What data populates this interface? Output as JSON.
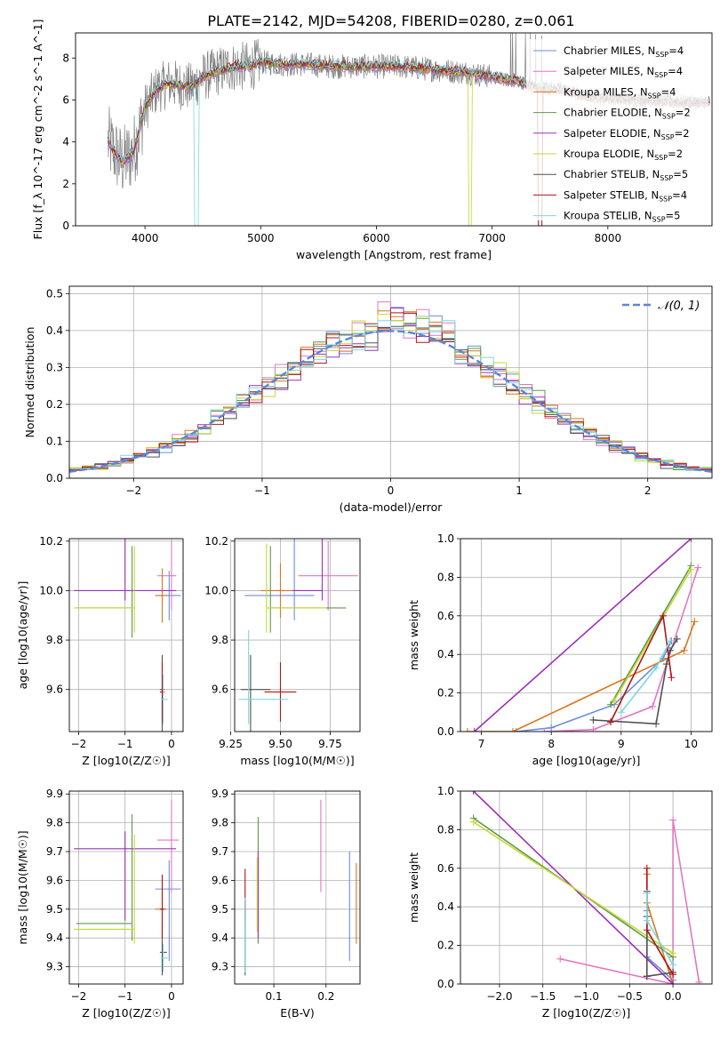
{
  "title": "PLATE=2142, MJD=54208, FIBERID=0280, z=0.061",
  "colors": [
    "#6a8fdb",
    "#e377c2",
    "#d9771f",
    "#5e9a4a",
    "#9b30b8",
    "#c8d832",
    "#505050",
    "#b01515",
    "#7fd6e0"
  ],
  "chart_data": [
    {
      "id": "spectrum",
      "type": "line",
      "xlabel": "wavelength [Angstrom, rest frame]",
      "ylabel": "Flux [f_λ 10^-17 erg cm^-2 s^-1 A^-1]",
      "xlim": [
        3400,
        8900
      ],
      "ylim": [
        0,
        9.2
      ],
      "xticks": [
        4000,
        5000,
        6000,
        7000,
        8000
      ],
      "yticks": [
        0,
        2,
        4,
        6,
        8
      ],
      "grid": false,
      "legend": "right",
      "data_color": "#808080",
      "data_x": [
        3680,
        3800,
        3900,
        4000,
        4100,
        4200,
        4300,
        4400,
        4500,
        4600,
        4700,
        4800,
        4900,
        5000,
        5200,
        5400,
        5600,
        5800,
        6000,
        6200,
        6400,
        6600,
        6800,
        7000,
        7200,
        7400,
        7600,
        7800,
        8000,
        8200,
        8400,
        8600,
        8800
      ],
      "data_y": [
        4.0,
        3.0,
        3.5,
        5.6,
        6.5,
        6.8,
        6.7,
        6.6,
        7.1,
        7.3,
        7.5,
        7.6,
        7.6,
        7.8,
        7.7,
        7.7,
        7.6,
        7.6,
        7.6,
        7.6,
        7.5,
        7.4,
        7.3,
        7.1,
        6.9,
        6.6,
        6.5,
        6.2,
        6.1,
        6.0,
        6.0,
        5.9,
        5.9
      ],
      "series": [
        {
          "name": "Chabrier MILES, N_SSP=4",
          "ssp": "N_SSP=4"
        },
        {
          "name": "Salpeter MILES, N_SSP=4",
          "ssp": "N_SSP=4"
        },
        {
          "name": "Kroupa MILES, N_SSP=4",
          "ssp": "N_SSP=4"
        },
        {
          "name": "Chabrier ELODIE, N_SSP=2",
          "ssp": "N_SSP=2"
        },
        {
          "name": "Salpeter ELODIE, N_SSP=2",
          "ssp": "N_SSP=2"
        },
        {
          "name": "Kroupa ELODIE, N_SSP=2",
          "ssp": "N_SSP=2"
        },
        {
          "name": "Chabrier STELIB, N_SSP=5",
          "ssp": "N_SSP=5"
        },
        {
          "name": "Salpeter STELIB, N_SSP=4",
          "ssp": "N_SSP=4"
        },
        {
          "name": "Kroupa STELIB, N_SSP=5",
          "ssp": "N_SSP=5"
        }
      ],
      "legend_items": [
        {
          "lib": "Chabrier MILES, N",
          "sub": "SSP",
          "rest": "=4"
        },
        {
          "lib": "Salpeter MILES, N",
          "sub": "SSP",
          "rest": "=4"
        },
        {
          "lib": "Kroupa MILES, N",
          "sub": "SSP",
          "rest": "=4"
        },
        {
          "lib": "Chabrier ELODIE, N",
          "sub": "SSP",
          "rest": "=2"
        },
        {
          "lib": "Salpeter ELODIE, N",
          "sub": "SSP",
          "rest": "=2"
        },
        {
          "lib": "Kroupa ELODIE, N",
          "sub": "SSP",
          "rest": "=2"
        },
        {
          "lib": "Chabrier STELIB, N",
          "sub": "SSP",
          "rest": "=5"
        },
        {
          "lib": "Salpeter STELIB, N",
          "sub": "SSP",
          "rest": "=4"
        },
        {
          "lib": "Kroupa STELIB, N",
          "sub": "SSP",
          "rest": "=5"
        }
      ]
    },
    {
      "id": "residuals",
      "type": "line",
      "xlabel": "(data-model)/error",
      "ylabel": "Normed distribution",
      "xlim": [
        -2.5,
        2.5
      ],
      "ylim": [
        0,
        0.52
      ],
      "xticks": [
        -2,
        -1,
        0,
        1,
        2
      ],
      "yticks": [
        0.0,
        0.1,
        0.2,
        0.3,
        0.4,
        0.5
      ],
      "grid": true,
      "legend": "top-right",
      "gaussian_label": "𝒩(0, 1)",
      "gaussian_color": "#5b86d6"
    },
    {
      "id": "age-vs-Z",
      "type": "scatter",
      "xlabel": "Z [log10(Z/Z☉)]",
      "ylabel": "age [log10(age/yr)]",
      "xlim": [
        -2.2,
        0.25
      ],
      "ylim": [
        9.43,
        10.21
      ],
      "xticks": [
        -2,
        -1,
        0
      ],
      "yticks": [
        9.6,
        9.8,
        10.0,
        10.2
      ],
      "grid": true,
      "points": [
        {
          "x": -0.05,
          "y": 9.98,
          "xerr": [
            0.3,
            0.25
          ],
          "yerr": [
            0.1,
            0.1
          ],
          "color": 0
        },
        {
          "x": 0.0,
          "y": 10.06,
          "xerr": [
            0.3,
            0.1
          ],
          "yerr": [
            0.14,
            0.14
          ],
          "color": 1
        },
        {
          "x": -0.2,
          "y": 9.98,
          "xerr": [
            0.15,
            0.1
          ],
          "yerr": [
            0.11,
            0.11
          ],
          "color": 2
        },
        {
          "x": -0.85,
          "y": 9.93,
          "xerr": [
            1.2,
            0.0
          ],
          "yerr": [
            0.12,
            0.25
          ],
          "color": 3
        },
        {
          "x": -1.0,
          "y": 10.0,
          "xerr": [
            1.1,
            1.1
          ],
          "yerr": [
            0.04,
            0.25
          ],
          "color": 4
        },
        {
          "x": -0.8,
          "y": 9.93,
          "xerr": [
            1.3,
            0.0
          ],
          "yerr": [
            0.1,
            0.25
          ],
          "color": 5
        },
        {
          "x": -0.2,
          "y": 9.6,
          "xerr": [
            0.05,
            0.05
          ],
          "yerr": [
            0.25,
            0.14
          ],
          "color": 6
        },
        {
          "x": -0.2,
          "y": 9.59,
          "xerr": [
            0.05,
            0.05
          ],
          "yerr": [
            0.12,
            0.12
          ],
          "color": 7
        },
        {
          "x": -0.18,
          "y": 9.56,
          "xerr": [
            0.05,
            0.1
          ],
          "yerr": [
            0.1,
            0.1
          ],
          "color": 8
        }
      ]
    },
    {
      "id": "age-vs-mass",
      "type": "scatter",
      "xlabel": "mass [log10(M/M☉)]",
      "ylabel": "",
      "xlim": [
        9.27,
        9.9
      ],
      "ylim": [
        9.43,
        10.21
      ],
      "xticks": [
        9.25,
        9.5,
        9.75
      ],
      "yticks": [
        9.6,
        9.8,
        10.0,
        10.2
      ],
      "grid": true,
      "points": [
        {
          "x": 9.57,
          "y": 9.98,
          "xerr": [
            0.25,
            0.1
          ],
          "yerr": [
            0.1,
            0.24
          ],
          "color": 0
        },
        {
          "x": 9.74,
          "y": 10.06,
          "xerr": [
            0.15,
            0.15
          ],
          "yerr": [
            0.14,
            0.14
          ],
          "color": 1
        },
        {
          "x": 9.5,
          "y": 10.0,
          "xerr": [
            0.1,
            0.1
          ],
          "yerr": [
            0.11,
            0.11
          ],
          "color": 2
        },
        {
          "x": 9.45,
          "y": 9.93,
          "xerr": [
            0.0,
            0.38
          ],
          "yerr": [
            0.1,
            0.25
          ],
          "color": 3
        },
        {
          "x": 9.71,
          "y": 10.0,
          "xerr": [
            0.15,
            0.0
          ],
          "yerr": [
            0.04,
            0.25
          ],
          "color": 4
        },
        {
          "x": 9.43,
          "y": 9.93,
          "xerr": [
            0.0,
            0.3
          ],
          "yerr": [
            0.1,
            0.26
          ],
          "color": 5
        },
        {
          "x": 9.35,
          "y": 9.6,
          "xerr": [
            0.05,
            0.1
          ],
          "yerr": [
            0.25,
            0.14
          ],
          "color": 6
        },
        {
          "x": 9.5,
          "y": 9.59,
          "xerr": [
            0.08,
            0.08
          ],
          "yerr": [
            0.12,
            0.12
          ],
          "color": 7
        },
        {
          "x": 9.34,
          "y": 9.56,
          "xerr": [
            0.05,
            0.2
          ],
          "yerr": [
            0.1,
            0.28
          ],
          "color": 8
        }
      ]
    },
    {
      "id": "massweight-vs-age",
      "type": "line",
      "xlabel": "age [log10(age/yr)]",
      "ylabel": "mass weight",
      "xlim": [
        6.7,
        10.3
      ],
      "ylim": [
        0,
        1.0
      ],
      "xticks": [
        7,
        8,
        9,
        10
      ],
      "yticks": [
        0.0,
        0.2,
        0.4,
        0.6,
        0.8,
        1.0
      ],
      "grid": true,
      "series": [
        {
          "color": 0,
          "x": [
            7.5,
            8.0,
            8.9,
            9.6,
            9.72
          ],
          "y": [
            0.0,
            0.02,
            0.14,
            0.38,
            0.47
          ]
        },
        {
          "color": 1,
          "x": [
            7.9,
            8.6,
            9.45,
            10.1
          ],
          "y": [
            0.0,
            0.01,
            0.13,
            0.85
          ]
        },
        {
          "color": 2,
          "x": [
            6.8,
            7.45,
            9.9,
            10.05
          ],
          "y": [
            0.0,
            0.0,
            0.42,
            0.57
          ]
        },
        {
          "color": 3,
          "x": [
            8.85,
            10.0
          ],
          "y": [
            0.14,
            0.86
          ]
        },
        {
          "color": 4,
          "x": [
            6.9,
            10.0
          ],
          "y": [
            0.0,
            1.0
          ]
        },
        {
          "color": 5,
          "x": [
            8.9,
            10.0
          ],
          "y": [
            0.16,
            0.84
          ]
        },
        {
          "color": 6,
          "x": [
            8.6,
            9.5,
            9.65,
            9.7,
            9.8
          ],
          "y": [
            0.06,
            0.04,
            0.35,
            0.42,
            0.48
          ]
        },
        {
          "color": 7,
          "x": [
            8.85,
            9.6,
            9.72
          ],
          "y": [
            0.05,
            0.6,
            0.28
          ]
        },
        {
          "color": 8,
          "x": [
            9.0,
            9.5,
            9.7
          ],
          "y": [
            0.1,
            0.33,
            0.47
          ]
        }
      ]
    },
    {
      "id": "mass-vs-Z",
      "type": "scatter",
      "xlabel": "Z [log10(Z/Z☉)]",
      "ylabel": "mass [log10(M/M☉)]",
      "xlim": [
        -2.2,
        0.25
      ],
      "ylim": [
        9.24,
        9.91
      ],
      "xticks": [
        -2,
        -1,
        0
      ],
      "yticks": [
        9.3,
        9.4,
        9.5,
        9.6,
        9.7,
        9.8,
        9.9
      ],
      "grid": true,
      "points": [
        {
          "x": -0.05,
          "y": 9.57,
          "xerr": [
            0.3,
            0.25
          ],
          "yerr": [
            0.25,
            0.1
          ],
          "color": 0
        },
        {
          "x": 0.0,
          "y": 9.74,
          "xerr": [
            0.3,
            0.15
          ],
          "yerr": [
            0.18,
            0.14
          ],
          "color": 1
        },
        {
          "x": -0.2,
          "y": 9.5,
          "xerr": [
            0.15,
            0.1
          ],
          "yerr": [
            0.1,
            0.1
          ],
          "color": 2
        },
        {
          "x": -0.85,
          "y": 9.45,
          "xerr": [
            1.2,
            0.0
          ],
          "yerr": [
            0.06,
            0.38
          ],
          "color": 3
        },
        {
          "x": -1.0,
          "y": 9.71,
          "xerr": [
            1.1,
            1.1
          ],
          "yerr": [
            0.25,
            0.06
          ],
          "color": 4
        },
        {
          "x": -0.8,
          "y": 9.43,
          "xerr": [
            1.3,
            0.0
          ],
          "yerr": [
            0.05,
            0.33
          ],
          "color": 5
        },
        {
          "x": -0.2,
          "y": 9.35,
          "xerr": [
            0.05,
            0.1
          ],
          "yerr": [
            0.08,
            0.1
          ],
          "color": 6
        },
        {
          "x": -0.2,
          "y": 9.5,
          "xerr": [
            0.05,
            0.05
          ],
          "yerr": [
            0.1,
            0.12
          ],
          "color": 7
        },
        {
          "x": -0.18,
          "y": 9.33,
          "xerr": [
            0.05,
            0.1
          ],
          "yerr": [
            0.05,
            0.05
          ],
          "color": 8
        }
      ]
    },
    {
      "id": "mass-vs-EBV",
      "type": "scatter",
      "xlabel": "E(B-V)",
      "ylabel": "",
      "xlim": [
        0.025,
        0.265
      ],
      "ylim": [
        9.24,
        9.91
      ],
      "xticks": [
        0.1,
        0.2
      ],
      "yticks": [
        9.3,
        9.4,
        9.5,
        9.6,
        9.7,
        9.8,
        9.9
      ],
      "grid": true,
      "points": [
        {
          "x": 0.245,
          "y": 9.51,
          "xerr": [
            0,
            0
          ],
          "yerr": [
            0.19,
            0.19
          ],
          "color": 0
        },
        {
          "x": 0.19,
          "y": 9.72,
          "xerr": [
            0,
            0
          ],
          "yerr": [
            0.16,
            0.16
          ],
          "color": 1
        },
        {
          "x": 0.258,
          "y": 9.52,
          "xerr": [
            0,
            0
          ],
          "yerr": [
            0.14,
            0.14
          ],
          "color": 2
        },
        {
          "x": 0.07,
          "y": 9.6,
          "xerr": [
            0,
            0
          ],
          "yerr": [
            0.22,
            0.22
          ],
          "color": 3
        },
        {
          "x": 0.07,
          "y": 9.55,
          "xerr": [
            0,
            0
          ],
          "yerr": [
            0.15,
            0.15
          ],
          "color": 4
        },
        {
          "x": 0.068,
          "y": 9.5,
          "xerr": [
            0,
            0
          ],
          "yerr": [
            0.08,
            0.18
          ],
          "color": 5
        },
        {
          "x": 0.045,
          "y": 9.4,
          "xerr": [
            0,
            0
          ],
          "yerr": [
            0.13,
            0.13
          ],
          "color": 6
        },
        {
          "x": 0.045,
          "y": 9.55,
          "xerr": [
            0,
            0
          ],
          "yerr": [
            0.09,
            0.09
          ],
          "color": 7
        },
        {
          "x": 0.045,
          "y": 9.41,
          "xerr": [
            0,
            0
          ],
          "yerr": [
            0.13,
            0.13
          ],
          "color": 8
        }
      ]
    },
    {
      "id": "massweight-vs-Z",
      "type": "line",
      "xlabel": "Z [log10(Z/Z☉)]",
      "ylabel": "mass weight",
      "xlim": [
        -2.45,
        0.45
      ],
      "ylim": [
        0,
        1.0
      ],
      "xticks": [
        -2.0,
        -1.5,
        -1.0,
        -0.5,
        0.0
      ],
      "yticks": [
        0.0,
        0.2,
        0.4,
        0.6,
        0.8,
        1.0
      ],
      "grid": true,
      "series": [
        {
          "color": 0,
          "x": [
            -0.3,
            -0.3,
            -0.3,
            0.0,
            0.0
          ],
          "y": [
            0.47,
            0.38,
            0.14,
            0.02,
            0.0
          ]
        },
        {
          "color": 1,
          "x": [
            -1.3,
            0.0,
            0.0,
            0.3
          ],
          "y": [
            0.13,
            0.0,
            0.85,
            0.01
          ]
        },
        {
          "color": 2,
          "x": [
            -0.3,
            -0.3,
            0.0
          ],
          "y": [
            0.57,
            0.42,
            0.0
          ]
        },
        {
          "color": 3,
          "x": [
            -2.3,
            0.0
          ],
          "y": [
            0.86,
            0.14
          ]
        },
        {
          "color": 4,
          "x": [
            -2.3,
            0.0
          ],
          "y": [
            1.0,
            0.0
          ]
        },
        {
          "color": 5,
          "x": [
            -2.3,
            0.0
          ],
          "y": [
            0.84,
            0.16
          ]
        },
        {
          "color": 6,
          "x": [
            -0.3,
            -0.3,
            -0.3,
            0.0,
            -0.3
          ],
          "y": [
            0.48,
            0.35,
            0.04,
            0.06,
            0.04
          ]
        },
        {
          "color": 7,
          "x": [
            -0.3,
            -0.3,
            0.0
          ],
          "y": [
            0.6,
            0.28,
            0.05
          ]
        },
        {
          "color": 8,
          "x": [
            -0.3,
            -0.3,
            0.0
          ],
          "y": [
            0.47,
            0.33,
            0.1
          ]
        }
      ]
    }
  ]
}
